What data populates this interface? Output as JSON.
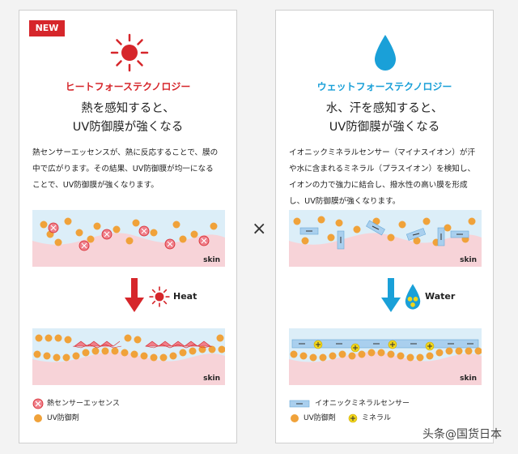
{
  "left": {
    "badge": "NEW",
    "tech_title": "ヒートフォーステクノロジー",
    "headline": [
      "熱を感知すると、",
      "UV防御膜が強くなる"
    ],
    "body": [
      "熱センサーエッセンスが、熱に反応することで、膜の",
      "中で広がります。その結果、UV防御膜が均一になる",
      "ことで、UV防御膜が強くなります。"
    ],
    "skin_label_top": "skin",
    "skin_label_bottom": "skin",
    "trigger_label": "Heat",
    "legend": [
      "熱センサーエッセンス",
      "UV防御剤"
    ],
    "colors": {
      "accent": "#d6262b",
      "band": "#dceef8",
      "skin": "#f7d3d8",
      "particle": "#f0a23a"
    }
  },
  "right": {
    "tech_title": "ウェットフォーステクノロジー",
    "headline": [
      "水、汗を感知すると、",
      "UV防御膜が強くなる"
    ],
    "body": [
      "イオニックミネラルセンサー（マイナスイオン）が汗",
      "や水に含まれるミネラル（プラスイオン）を検知し、",
      "イオンの力で強力に結合し、撥水性の高い膜を形成",
      "し、UV防御膜が強くなります。"
    ],
    "skin_label_top": "skin",
    "skin_label_bottom": "skin",
    "trigger_label": "Water",
    "legend": [
      "イオニックミネラルセンサー",
      "UV防御剤",
      "ミネラル"
    ],
    "colors": {
      "accent": "#1aa0d8",
      "sensor": "#a9cfee",
      "mineral": "#f2d61a"
    }
  },
  "times_symbol": "×",
  "watermark": "头条@国货日本"
}
